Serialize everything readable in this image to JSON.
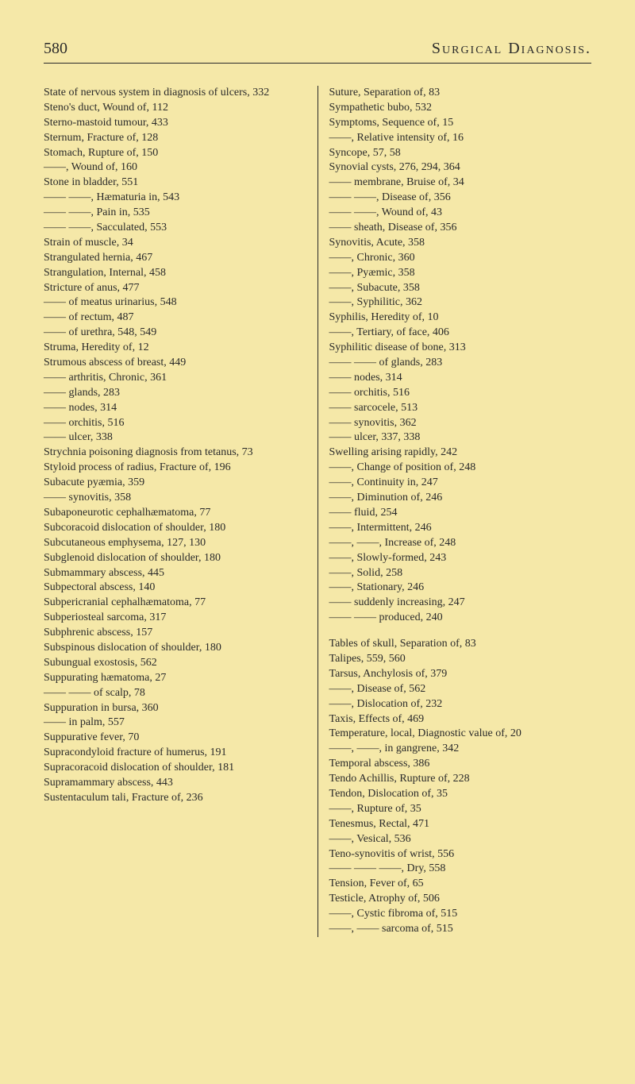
{
  "pageNumber": "580",
  "bookTitle": "Surgical Diagnosis.",
  "leftColumn": [
    {
      "cls": "entry",
      "text": "State of nervous system in diagnosis of ulcers, 332"
    },
    {
      "cls": "entry",
      "text": "Steno's duct, Wound of, 112"
    },
    {
      "cls": "entry",
      "text": "Sterno-mastoid tumour, 433"
    },
    {
      "cls": "entry",
      "text": "Sternum, Fracture of, 128"
    },
    {
      "cls": "entry",
      "text": "Stomach, Rupture of, 150"
    },
    {
      "cls": "entry",
      "text": "——, Wound of, 160"
    },
    {
      "cls": "entry",
      "text": "Stone in bladder, 551"
    },
    {
      "cls": "entry",
      "text": "—— ——, Hæmaturia in, 543"
    },
    {
      "cls": "entry",
      "text": "—— ——, Pain in, 535"
    },
    {
      "cls": "entry",
      "text": "—— ——, Sacculated, 553"
    },
    {
      "cls": "entry",
      "text": "Strain of muscle, 34"
    },
    {
      "cls": "entry",
      "text": "Strangulated hernia, 467"
    },
    {
      "cls": "entry",
      "text": "Strangulation, Internal, 458"
    },
    {
      "cls": "entry",
      "text": "Stricture of anus, 477"
    },
    {
      "cls": "entry",
      "text": "—— of meatus urinarius, 548"
    },
    {
      "cls": "entry",
      "text": "—— of rectum, 487"
    },
    {
      "cls": "entry",
      "text": "—— of urethra, 548, 549"
    },
    {
      "cls": "entry",
      "text": "Struma, Heredity of, 12"
    },
    {
      "cls": "entry",
      "text": "Strumous abscess of breast, 449"
    },
    {
      "cls": "entry",
      "text": "—— arthritis, Chronic, 361"
    },
    {
      "cls": "entry",
      "text": "—— glands, 283"
    },
    {
      "cls": "entry",
      "text": "—— nodes, 314"
    },
    {
      "cls": "entry",
      "text": "—— orchitis, 516"
    },
    {
      "cls": "entry",
      "text": "—— ulcer, 338"
    },
    {
      "cls": "entry",
      "text": "Strychnia poisoning diagnosis from tetanus, 73"
    },
    {
      "cls": "entry",
      "text": "Styloid process of radius, Fracture of, 196"
    },
    {
      "cls": "entry",
      "text": "Subacute pyæmia, 359"
    },
    {
      "cls": "entry",
      "text": "—— synovitis, 358"
    },
    {
      "cls": "entry",
      "text": "Subaponeurotic cephalhæmatoma, 77"
    },
    {
      "cls": "entry",
      "text": "Subcoracoid dislocation of shoulder, 180"
    },
    {
      "cls": "entry",
      "text": "Subcutaneous emphysema, 127, 130"
    },
    {
      "cls": "entry",
      "text": "Subglenoid dislocation of shoulder, 180"
    },
    {
      "cls": "entry",
      "text": "Submammary abscess, 445"
    },
    {
      "cls": "entry",
      "text": "Subpectoral abscess, 140"
    },
    {
      "cls": "entry",
      "text": "Subpericranial cephalhæmatoma, 77"
    },
    {
      "cls": "entry",
      "text": "Subperiosteal sarcoma, 317"
    },
    {
      "cls": "entry",
      "text": "Subphrenic abscess, 157"
    },
    {
      "cls": "entry",
      "text": "Subspinous dislocation of shoulder, 180"
    },
    {
      "cls": "entry",
      "text": "Subungual exostosis, 562"
    },
    {
      "cls": "entry",
      "text": "Suppurating hæmatoma, 27"
    },
    {
      "cls": "entry",
      "text": "—— —— of scalp, 78"
    },
    {
      "cls": "entry",
      "text": "Suppuration in bursa, 360"
    },
    {
      "cls": "entry",
      "text": "—— in palm, 557"
    },
    {
      "cls": "entry",
      "text": "Suppurative fever, 70"
    },
    {
      "cls": "entry",
      "text": "Supracondyloid fracture of humerus, 191"
    },
    {
      "cls": "entry",
      "text": "Supracoracoid dislocation of shoulder, 181"
    },
    {
      "cls": "entry",
      "text": "Supramammary abscess, 443"
    },
    {
      "cls": "entry",
      "text": "Sustentaculum tali, Fracture of, 236"
    }
  ],
  "rightColumn": [
    {
      "cls": "entry",
      "text": "Suture, Separation of, 83"
    },
    {
      "cls": "entry",
      "text": "Sympathetic bubo, 532"
    },
    {
      "cls": "entry",
      "text": "Symptoms, Sequence of, 15"
    },
    {
      "cls": "entry",
      "text": "——, Relative intensity of, 16"
    },
    {
      "cls": "entry",
      "text": "Syncope, 57, 58"
    },
    {
      "cls": "entry",
      "text": "Synovial cysts, 276, 294, 364"
    },
    {
      "cls": "entry",
      "text": "—— membrane, Bruise of, 34"
    },
    {
      "cls": "entry",
      "text": "—— ——, Disease of, 356"
    },
    {
      "cls": "entry",
      "text": "—— ——, Wound of, 43"
    },
    {
      "cls": "entry",
      "text": "—— sheath, Disease of, 356"
    },
    {
      "cls": "entry",
      "text": "Synovitis, Acute, 358"
    },
    {
      "cls": "entry",
      "text": "——, Chronic, 360"
    },
    {
      "cls": "entry",
      "text": "——, Pyæmic, 358"
    },
    {
      "cls": "entry",
      "text": "——, Subacute, 358"
    },
    {
      "cls": "entry",
      "text": "——, Syphilitic, 362"
    },
    {
      "cls": "entry",
      "text": "Syphilis, Heredity of, 10"
    },
    {
      "cls": "entry",
      "text": "——, Tertiary, of face, 406"
    },
    {
      "cls": "entry",
      "text": "Syphilitic disease of bone, 313"
    },
    {
      "cls": "entry",
      "text": "—— —— of glands, 283"
    },
    {
      "cls": "entry",
      "text": "—— nodes, 314"
    },
    {
      "cls": "entry",
      "text": "—— orchitis, 516"
    },
    {
      "cls": "entry",
      "text": "—— sarcocele, 513"
    },
    {
      "cls": "entry",
      "text": "—— synovitis, 362"
    },
    {
      "cls": "entry",
      "text": "—— ulcer, 337, 338"
    },
    {
      "cls": "entry",
      "text": "Swelling arising rapidly, 242"
    },
    {
      "cls": "entry",
      "text": "——, Change of position of, 248"
    },
    {
      "cls": "entry",
      "text": "——, Continuity in, 247"
    },
    {
      "cls": "entry",
      "text": "——, Diminution of, 246"
    },
    {
      "cls": "entry",
      "text": "—— fluid, 254"
    },
    {
      "cls": "entry",
      "text": "——, Intermittent, 246"
    },
    {
      "cls": "entry",
      "text": "——, ——, Increase of, 248"
    },
    {
      "cls": "entry",
      "text": "——, Slowly-formed, 243"
    },
    {
      "cls": "entry",
      "text": "——, Solid, 258"
    },
    {
      "cls": "entry",
      "text": "——, Stationary, 246"
    },
    {
      "cls": "entry",
      "text": "—— suddenly increasing, 247"
    },
    {
      "cls": "entry",
      "text": "—— —— produced, 240"
    },
    {
      "cls": "spacer",
      "text": ""
    },
    {
      "cls": "entry",
      "text": "Tables of skull, Separation of, 83"
    },
    {
      "cls": "entry",
      "text": "Talipes, 559, 560"
    },
    {
      "cls": "entry",
      "text": "Tarsus, Anchylosis of, 379"
    },
    {
      "cls": "entry",
      "text": "——, Disease of, 562"
    },
    {
      "cls": "entry",
      "text": "——, Dislocation of, 232"
    },
    {
      "cls": "entry",
      "text": "Taxis, Effects of, 469"
    },
    {
      "cls": "entry",
      "text": "Temperature, local, Diagnostic value of, 20"
    },
    {
      "cls": "entry",
      "text": "——, ——, in gangrene, 342"
    },
    {
      "cls": "entry",
      "text": "Temporal abscess, 386"
    },
    {
      "cls": "entry",
      "text": "Tendo Achillis, Rupture of, 228"
    },
    {
      "cls": "entry",
      "text": "Tendon, Dislocation of, 35"
    },
    {
      "cls": "entry",
      "text": "——, Rupture of, 35"
    },
    {
      "cls": "entry",
      "text": "Tenesmus, Rectal, 471"
    },
    {
      "cls": "entry",
      "text": "——, Vesical, 536"
    },
    {
      "cls": "entry",
      "text": "Teno-synovitis of wrist, 556"
    },
    {
      "cls": "entry",
      "text": "—— —— ——, Dry, 558"
    },
    {
      "cls": "entry",
      "text": "Tension, Fever of, 65"
    },
    {
      "cls": "entry",
      "text": "Testicle, Atrophy of, 506"
    },
    {
      "cls": "entry",
      "text": "——, Cystic fibroma of, 515"
    },
    {
      "cls": "entry",
      "text": "——, —— sarcoma of, 515"
    }
  ]
}
